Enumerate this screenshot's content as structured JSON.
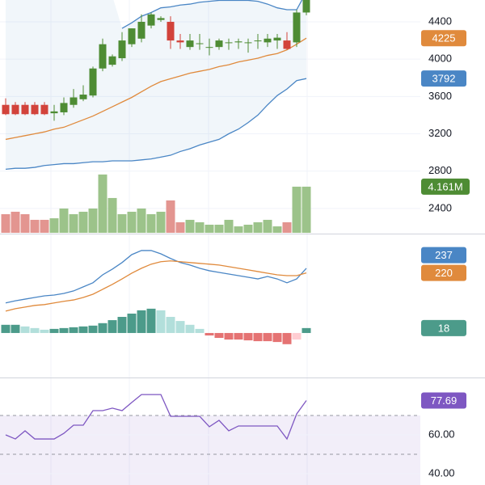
{
  "chart_data": [
    {
      "type": "candlestick",
      "open": [
        3510,
        3510,
        3510,
        3510,
        3510,
        3420,
        3430,
        3510,
        3570,
        3610,
        3900,
        3940,
        4010,
        4160,
        4220,
        4360,
        4420,
        4400,
        4200,
        4130,
        4170,
        4130,
        4130,
        4180,
        4180,
        4180,
        4200,
        4180,
        4200,
        4200,
        4180,
        4500
      ],
      "high": [
        3580,
        3540,
        3540,
        3540,
        3540,
        3510,
        3590,
        3680,
        3720,
        3920,
        4220,
        4050,
        4290,
        4330,
        4480,
        4500,
        4460,
        4460,
        4270,
        4270,
        4270,
        4220,
        4220,
        4220,
        4220,
        4220,
        4270,
        4270,
        4270,
        4290,
        4530,
        4720
      ],
      "low": [
        3400,
        3400,
        3400,
        3400,
        3400,
        3340,
        3400,
        3480,
        3550,
        3590,
        3870,
        3920,
        3980,
        4130,
        4180,
        4330,
        4400,
        4110,
        4110,
        4100,
        4100,
        4040,
        4100,
        4100,
        4110,
        4070,
        4110,
        4130,
        4110,
        4100,
        4130,
        4470
      ],
      "close": [
        3410,
        3410,
        3410,
        3410,
        3410,
        3440,
        3530,
        3590,
        3620,
        3900,
        4160,
        4030,
        4200,
        4330,
        4400,
        4480,
        4440,
        4200,
        4180,
        4200,
        4170,
        4130,
        4200,
        4180,
        4190,
        4180,
        4200,
        4220,
        4230,
        4110,
        4500,
        4650
      ],
      "up_color": "#4e8c34",
      "down_color": "#d2433b",
      "upper_band": [
        null,
        null,
        null,
        null,
        null,
        null,
        null,
        null,
        null,
        null,
        null,
        null,
        4330,
        4390,
        4460,
        4500,
        4550,
        4560,
        4580,
        4590,
        4610,
        4620,
        4630,
        4630,
        4630,
        4630,
        4620,
        4590,
        4550,
        4530,
        4530,
        4720
      ],
      "basis": [
        3140,
        3160,
        3180,
        3200,
        3220,
        3250,
        3270,
        3310,
        3350,
        3390,
        3440,
        3490,
        3540,
        3590,
        3650,
        3710,
        3760,
        3790,
        3820,
        3850,
        3870,
        3890,
        3920,
        3940,
        3970,
        3990,
        4010,
        4040,
        4060,
        4100,
        4160,
        4225
      ],
      "lower_band": [
        2820,
        2830,
        2830,
        2840,
        2860,
        2870,
        2880,
        2880,
        2890,
        2900,
        2900,
        2910,
        2910,
        2910,
        2920,
        2930,
        2950,
        2970,
        3010,
        3040,
        3080,
        3110,
        3140,
        3200,
        3250,
        3320,
        3400,
        3510,
        3610,
        3680,
        3770,
        3792
      ],
      "band_color": "#4a86c5",
      "basis_color": "#e08a3c",
      "ylim": [
        2130,
        4634
      ],
      "yticks": [
        2400,
        2800,
        3200,
        3600,
        4000,
        4400
      ],
      "grid": true,
      "volume": {
        "values": [
          1.68,
          1.9,
          1.68,
          1.17,
          1.17,
          1.31,
          2.19,
          1.68,
          1.9,
          2.19,
          5.26,
          3.14,
          1.68,
          1.9,
          2.19,
          1.68,
          1.9,
          2.92,
          0.95,
          1.17,
          0.95,
          0.73,
          0.73,
          1.17,
          0.58,
          0.73,
          0.95,
          1.17,
          0.58,
          0.95,
          4.161,
          4.161
        ],
        "value_labels": [
          null,
          null,
          null,
          null,
          null,
          null,
          null,
          null,
          null,
          null,
          null,
          null,
          null,
          null,
          null,
          null,
          null,
          null,
          null,
          null,
          null,
          null,
          null,
          null,
          null,
          null,
          null,
          null,
          null,
          null,
          null,
          "4.161M"
        ],
        "up_color": "#9cc38a",
        "down_color": "#e39590",
        "badge_color": "#4e8c34",
        "ylim": [
          0,
          21
        ]
      }
    },
    {
      "type": "macd",
      "macd": [
        110,
        118,
        124,
        130,
        136,
        139,
        145,
        154,
        169,
        184,
        213,
        234,
        258,
        287,
        302,
        302,
        290,
        273,
        258,
        249,
        237,
        228,
        222,
        216,
        210,
        204,
        198,
        207,
        198,
        184,
        198,
        237
      ],
      "signal": [
        80,
        89,
        95,
        101,
        104,
        110,
        116,
        121,
        130,
        142,
        160,
        178,
        198,
        219,
        237,
        252,
        261,
        264,
        261,
        258,
        255,
        252,
        249,
        243,
        237,
        231,
        225,
        219,
        213,
        210,
        210,
        220
      ],
      "histogram": [
        30,
        30,
        24,
        18,
        12,
        15,
        18,
        21,
        24,
        27,
        36,
        47,
        59,
        71,
        83,
        89,
        83,
        59,
        44,
        30,
        15,
        -9,
        -18,
        -24,
        -24,
        -27,
        -30,
        -30,
        -33,
        -41,
        -24,
        18
      ],
      "macd_color": "#4a86c5",
      "signal_color": "#e08a3c",
      "hist_colors": [
        "#4c9b8a",
        "#b2dfdb",
        "#e57373",
        "#ffcdd2"
      ],
      "ylim": [
        -160,
        361
      ]
    },
    {
      "type": "rsi",
      "values": [
        60,
        57.9,
        62.1,
        57.9,
        57.9,
        57.9,
        60.8,
        65,
        65,
        72.5,
        72.5,
        73.8,
        72.5,
        76.7,
        80.8,
        80.8,
        80.8,
        69.6,
        69.6,
        69.6,
        69.6,
        64.2,
        67.5,
        62.1,
        64.6,
        64.6,
        64.6,
        64.6,
        64.6,
        57.9,
        70.8,
        77.69
      ],
      "color": "#7e57c2",
      "levels": [
        70,
        50
      ],
      "ylim": [
        34.17,
        89.17
      ],
      "yticks": [
        {
          "value": 60,
          "label": "60.00"
        },
        {
          "value": 40,
          "label": "40.00"
        }
      ],
      "grid": true
    }
  ]
}
